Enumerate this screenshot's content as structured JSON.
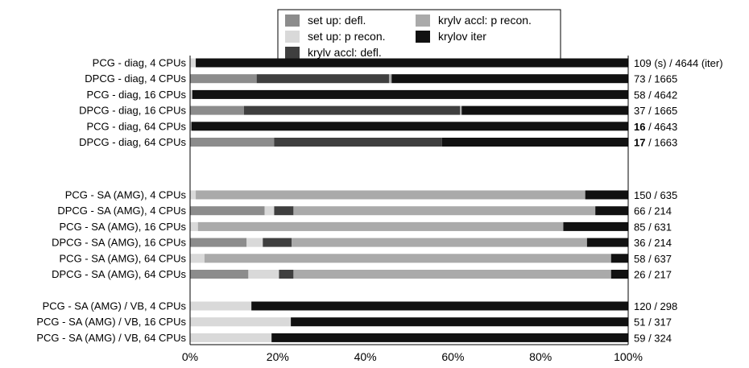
{
  "chart_data": {
    "type": "bar",
    "orientation": "horizontal",
    "stacked": true,
    "normalized": true,
    "xlim": [
      0,
      100
    ],
    "x_ticks": [
      "0%",
      "20%",
      "40%",
      "60%",
      "80%",
      "100%"
    ],
    "grid": false,
    "legend_position": "top",
    "series": [
      {
        "name": "set up: defl.",
        "color": "#8c8c8c"
      },
      {
        "name": "set up: p recon.",
        "color": "#d9d9d9"
      },
      {
        "name": "krylv accl: defl.",
        "color": "#3f3f3f"
      },
      {
        "name": "krylv accl: p recon.",
        "color": "#aaaaaa"
      },
      {
        "name": "krylov iter",
        "color": "#111111"
      }
    ],
    "groups": [
      {
        "rows": [
          {
            "label": "PCG - diag, 4 CPUs",
            "values": [
              0,
              1.3,
              0,
              0,
              98.7
            ],
            "annotation": {
              "time": "109",
              "rest": " (s) / 4644 (iter)",
              "bold": false
            }
          },
          {
            "label": "DPCG - diag, 4 CPUs",
            "values": [
              15.2,
              0,
              30.2,
              0.6,
              54.0
            ],
            "annotation": {
              "time": "73",
              "rest": " / 1665",
              "bold": false
            }
          },
          {
            "label": "PCG - diag, 16 CPUs",
            "values": [
              0,
              0.5,
              0,
              0,
              99.5
            ],
            "annotation": {
              "time": "58",
              "rest": " / 4642",
              "bold": false
            }
          },
          {
            "label": "DPCG - diag, 16 CPUs",
            "values": [
              12.3,
              0,
              49.3,
              0.4,
              38.0
            ],
            "annotation": {
              "time": "37",
              "rest": " / 1665",
              "bold": false
            }
          },
          {
            "label": "PCG - diag, 64 CPUs",
            "values": [
              0,
              0.3,
              0,
              0,
              99.7
            ],
            "annotation": {
              "time": "16",
              "rest": " / 4643",
              "bold": true
            }
          },
          {
            "label": "DPCG - diag, 64 CPUs",
            "values": [
              19.2,
              0,
              38.3,
              0,
              42.5
            ],
            "annotation": {
              "time": "17",
              "rest": " / 1663",
              "bold": true
            }
          }
        ]
      },
      {
        "rows": [
          {
            "label": "PCG - SA (AMG), 4 CPUs",
            "values": [
              0,
              1.3,
              0,
              88.9,
              9.8
            ],
            "annotation": {
              "time": "150",
              "rest": " / 635",
              "bold": false
            }
          },
          {
            "label": "DPCG - SA (AMG), 4 CPUs",
            "values": [
              17.0,
              2.2,
              4.4,
              68.9,
              7.5
            ],
            "annotation": {
              "time": "66",
              "rest": " / 214",
              "bold": false
            }
          },
          {
            "label": "PCG - SA (AMG), 16 CPUs",
            "values": [
              0,
              1.8,
              0,
              83.4,
              14.8
            ],
            "annotation": {
              "time": "85",
              "rest": " / 631",
              "bold": false
            }
          },
          {
            "label": "DPCG - SA (AMG), 16 CPUs",
            "values": [
              12.9,
              3.7,
              6.6,
              67.4,
              9.4
            ],
            "annotation": {
              "time": "36",
              "rest": " / 214",
              "bold": false
            }
          },
          {
            "label": "PCG - SA (AMG), 64 CPUs",
            "values": [
              0,
              3.3,
              0,
              92.8,
              3.9
            ],
            "annotation": {
              "time": "58",
              "rest": " / 637",
              "bold": false
            }
          },
          {
            "label": "DPCG - SA (AMG), 64 CPUs",
            "values": [
              13.3,
              7.0,
              3.3,
              72.5,
              3.9
            ],
            "annotation": {
              "time": "26",
              "rest": " / 217",
              "bold": false
            }
          }
        ]
      },
      {
        "rows": [
          {
            "label": "PCG - SA (AMG) / VB, 4 CPUs",
            "values": [
              0,
              14.0,
              0,
              0,
              86.0
            ],
            "annotation": {
              "time": "120",
              "rest": " / 298",
              "bold": false
            }
          },
          {
            "label": "PCG - SA (AMG) / VB, 16 CPUs",
            "values": [
              0,
              23.0,
              0,
              0,
              77.0
            ],
            "annotation": {
              "time": "51",
              "rest": " / 317",
              "bold": false
            }
          },
          {
            "label": "PCG - SA (AMG) / VB, 64 CPUs",
            "values": [
              0,
              18.6,
              0,
              0,
              81.4
            ],
            "annotation": {
              "time": "59",
              "rest": " / 324",
              "bold": false
            }
          }
        ]
      }
    ]
  }
}
